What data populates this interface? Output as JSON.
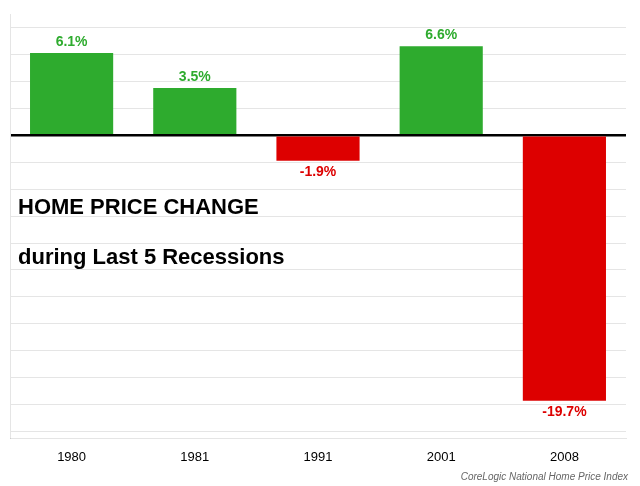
{
  "chart_data": {
    "type": "bar",
    "categories": [
      "1980",
      "1981",
      "1991",
      "2001",
      "2008"
    ],
    "values": [
      6.1,
      3.5,
      -1.9,
      6.6,
      -19.7
    ],
    "colors": [
      "#2eab2e",
      "#2eab2e",
      "#dd0000",
      "#2eab2e",
      "#dd0000"
    ],
    "value_labels": [
      "6.1%",
      "3.5%",
      "-1.9%",
      "6.6%",
      "-19.7%"
    ],
    "data_labels": true,
    "ylim": [
      -22.5,
      9.0
    ],
    "yticks": [
      -22,
      -20,
      -18,
      -16,
      -14,
      -12,
      -10,
      -8,
      -6,
      -4,
      -2,
      0,
      2,
      4,
      6,
      8
    ],
    "grid": true,
    "tick_labels": "x",
    "annotations": [
      "HOME PRICE CHANGE",
      "during Last 5 Recessions"
    ],
    "source": "CoreLogic National Home Price Index"
  }
}
